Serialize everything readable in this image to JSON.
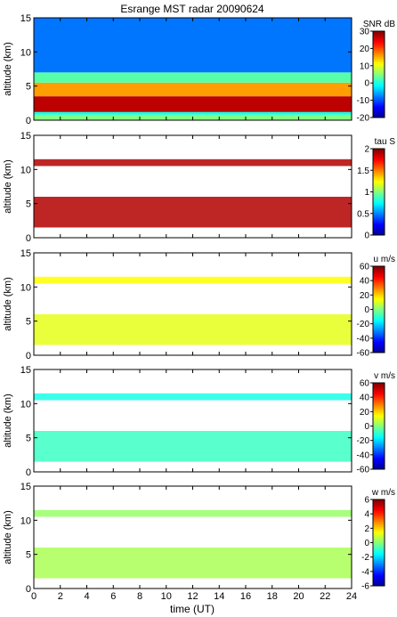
{
  "title": "Esrange MST radar 20090624",
  "xlabel": "time (UT)",
  "chart_data": [
    {
      "type": "heatmap",
      "variable": "SNR",
      "colorbar_label": "SNR dB",
      "clim": [
        -20,
        30
      ],
      "colorbar_ticks": [
        -20,
        -10,
        0,
        10,
        20,
        30
      ],
      "ylabel": "altitude (km)",
      "ylim": [
        0,
        15
      ],
      "yticks": [
        0,
        5,
        10,
        15
      ],
      "xlim": [
        0,
        24
      ],
      "xticks": [
        0,
        2,
        4,
        6,
        8,
        10,
        12,
        14,
        16,
        18,
        20,
        22,
        24
      ],
      "description_fill": "full coverage",
      "layers": [
        {
          "alt_start": 0.0,
          "alt_end": 0.8,
          "value": 5
        },
        {
          "alt_start": 0.8,
          "alt_end": 1.2,
          "value": 0
        },
        {
          "alt_start": 1.2,
          "alt_end": 3.5,
          "value": 27
        },
        {
          "alt_start": 3.5,
          "alt_end": 5.5,
          "value": 16
        },
        {
          "alt_start": 5.5,
          "alt_end": 7.0,
          "value": 3
        },
        {
          "alt_start": 7.0,
          "alt_end": 15.0,
          "value": -8
        }
      ]
    },
    {
      "type": "heatmap",
      "variable": "tau",
      "colorbar_label": "tau S",
      "clim": [
        0,
        2
      ],
      "colorbar_ticks": [
        0,
        0.5,
        1,
        1.5,
        2
      ],
      "ylabel": "altitude (km)",
      "ylim": [
        0,
        15
      ],
      "yticks": [
        0,
        5,
        10,
        15
      ],
      "xlim": [
        0,
        24
      ],
      "xticks": [
        0,
        2,
        4,
        6,
        8,
        10,
        12,
        14,
        16,
        18,
        20,
        22,
        24
      ],
      "layers": [
        {
          "alt_start": 1.5,
          "alt_end": 6.0,
          "value": 1.9
        },
        {
          "alt_start": 10.5,
          "alt_end": 11.5,
          "value": 1.9
        }
      ]
    },
    {
      "type": "heatmap",
      "variable": "u",
      "colorbar_label": "u m/s",
      "clim": [
        -60,
        60
      ],
      "colorbar_ticks": [
        -60,
        -40,
        -20,
        0,
        20,
        40,
        60
      ],
      "ylabel": "altitude (km)",
      "ylim": [
        0,
        15
      ],
      "yticks": [
        0,
        5,
        10,
        15
      ],
      "xlim": [
        0,
        24
      ],
      "xticks": [
        0,
        2,
        4,
        6,
        8,
        10,
        12,
        14,
        16,
        18,
        20,
        22,
        24
      ],
      "layers": [
        {
          "alt_start": 1.5,
          "alt_end": 6.0,
          "value": 12
        },
        {
          "alt_start": 10.5,
          "alt_end": 11.5,
          "value": 15
        }
      ]
    },
    {
      "type": "heatmap",
      "variable": "v",
      "colorbar_label": "v m/s",
      "clim": [
        -60,
        60
      ],
      "colorbar_ticks": [
        -60,
        -40,
        -20,
        0,
        20,
        40,
        60
      ],
      "ylabel": "altitude (km)",
      "ylim": [
        0,
        15
      ],
      "yticks": [
        0,
        5,
        10,
        15
      ],
      "xlim": [
        0,
        24
      ],
      "xticks": [
        0,
        2,
        4,
        6,
        8,
        10,
        12,
        14,
        16,
        18,
        20,
        22,
        24
      ],
      "layers": [
        {
          "alt_start": 1.5,
          "alt_end": 6.0,
          "value": -8
        },
        {
          "alt_start": 10.5,
          "alt_end": 11.5,
          "value": -12
        }
      ]
    },
    {
      "type": "heatmap",
      "variable": "w",
      "colorbar_label": "w m/s",
      "clim": [
        -6,
        6
      ],
      "colorbar_ticks": [
        -6,
        -4,
        -2,
        0,
        2,
        4,
        6
      ],
      "ylabel": "altitude (km)",
      "ylim": [
        0,
        15
      ],
      "yticks": [
        0,
        5,
        10,
        15
      ],
      "xlim": [
        0,
        24
      ],
      "xticks": [
        0,
        2,
        4,
        6,
        8,
        10,
        12,
        14,
        16,
        18,
        20,
        22,
        24
      ],
      "layers": [
        {
          "alt_start": 1.5,
          "alt_end": 6.0,
          "value": 0.5
        },
        {
          "alt_start": 10.5,
          "alt_end": 11.5,
          "value": 0.3
        }
      ]
    }
  ]
}
